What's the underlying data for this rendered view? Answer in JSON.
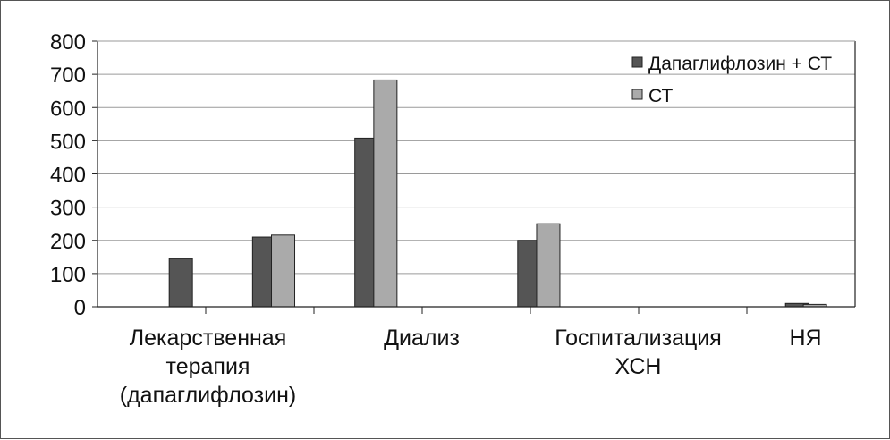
{
  "chart_data": {
    "type": "bar",
    "ylim": [
      0,
      800
    ],
    "y_ticks": [
      "0",
      "100",
      "200",
      "300",
      "400",
      "500",
      "600",
      "700",
      "800"
    ],
    "grid": true,
    "legend_position": "top-right",
    "category_labels": [
      [
        "Лекарственная",
        "терапия",
        "(дапаглифлозин)"
      ],
      [
        "Диализ"
      ],
      [
        "Госпитализация",
        "ХСН"
      ],
      [
        "НЯ"
      ]
    ],
    "series": [
      {
        "name": "Дапаглифлозин + СТ",
        "color": "#555555",
        "bars": [
          {
            "x": 0.11,
            "value": 145
          },
          {
            "x": 0.22,
            "value": 210
          },
          {
            "x": 0.355,
            "value": 508
          },
          {
            "x": 0.57,
            "value": 200
          },
          {
            "x": 0.78,
            "value": 0
          },
          {
            "x": 0.9235,
            "value": 10
          }
        ]
      },
      {
        "name": "СТ",
        "color": "#aaaaaa",
        "bars": [
          {
            "x": 0.16,
            "value": 0
          },
          {
            "x": 0.245,
            "value": 216
          },
          {
            "x": 0.38,
            "value": 683
          },
          {
            "x": 0.595,
            "value": 250
          },
          {
            "x": 0.8,
            "value": 0
          },
          {
            "x": 0.947,
            "value": 7
          }
        ]
      }
    ]
  }
}
